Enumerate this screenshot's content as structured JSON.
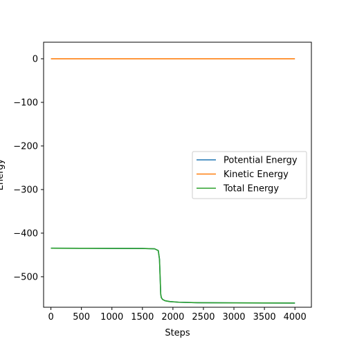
{
  "chart_data": {
    "type": "line",
    "title": "",
    "xlabel": "Steps",
    "ylabel": "Energy",
    "xlim": [
      -120,
      4270
    ],
    "ylim": [
      -570,
      38
    ],
    "x_ticks": [
      0,
      500,
      1000,
      1500,
      2000,
      2500,
      3000,
      3500,
      4000
    ],
    "y_ticks": [
      0,
      -100,
      -200,
      -300,
      -400,
      -500
    ],
    "x_tick_labels": [
      "0",
      "500",
      "1000",
      "1500",
      "2000",
      "2500",
      "3000",
      "3500",
      "4000"
    ],
    "y_tick_labels": [
      "0",
      "−100",
      "−200",
      "−300",
      "−400",
      "−500"
    ],
    "grid": false,
    "legend_position": "center-right",
    "series": [
      {
        "name": "Potential Energy",
        "color": "#1f77b4",
        "x": [
          0,
          500,
          1000,
          1500,
          1700,
          1760,
          1780,
          1790,
          1800,
          1810,
          1830,
          1870,
          1950,
          2100,
          2400,
          3000,
          3500,
          4000
        ],
        "y": [
          -434.5,
          -434.7,
          -434.9,
          -435.2,
          -436,
          -440,
          -460,
          -500,
          -540,
          -548,
          -552,
          -555,
          -557,
          -558.5,
          -559.5,
          -560,
          -560.2,
          -560.3
        ]
      },
      {
        "name": "Kinetic Energy",
        "color": "#ff7f0e",
        "x": [
          0,
          1000,
          2000,
          3000,
          4000
        ],
        "y": [
          0,
          0,
          0,
          0,
          0
        ]
      },
      {
        "name": "Total Energy",
        "color": "#2ca02c",
        "x": [
          0,
          500,
          1000,
          1500,
          1700,
          1760,
          1780,
          1790,
          1800,
          1810,
          1830,
          1870,
          1950,
          2100,
          2400,
          3000,
          3500,
          4000
        ],
        "y": [
          -434.5,
          -434.7,
          -434.9,
          -435.2,
          -436,
          -440,
          -460,
          -500,
          -540,
          -548,
          -552,
          -555,
          -557,
          -558.5,
          -559.5,
          -560,
          -560.2,
          -560.3
        ]
      }
    ]
  }
}
